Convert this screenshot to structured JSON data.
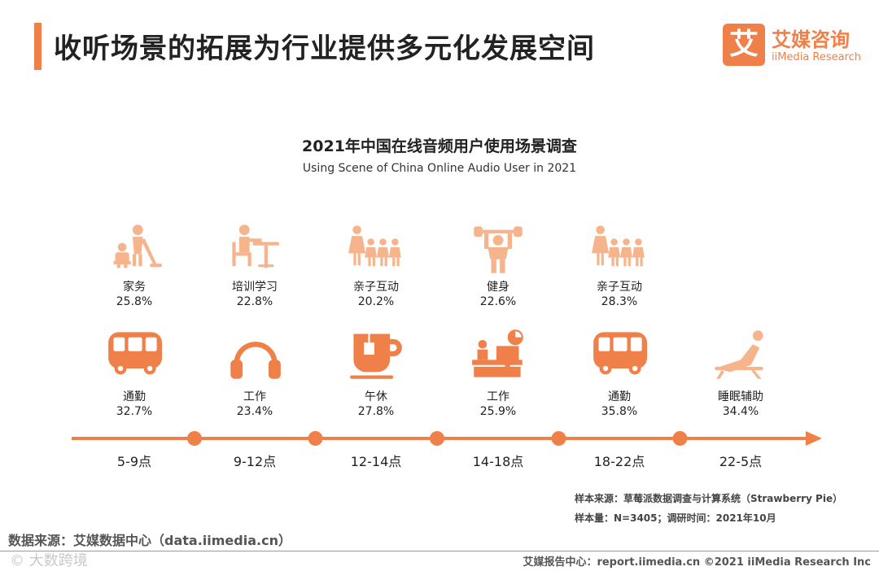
{
  "page": {
    "title": "收听场景的拓展为行业提供多元化发展空间",
    "accent_color": "#f0804a",
    "logo": {
      "mark": "艾",
      "name_cn": "艾媒咨询",
      "name_en": "iiMedia Research"
    }
  },
  "chart_data": {
    "type": "table",
    "title": "2021年中国在线音频用户使用场景调查",
    "subtitle": "Using Scene of China Online Audio User in 2021",
    "unit": "%",
    "time_slots": [
      "5-9点",
      "9-12点",
      "12-14点",
      "14-18点",
      "18-22点",
      "22-5点"
    ],
    "upper_row": [
      {
        "slot": "5-9点",
        "label": "家务",
        "value": 25.8,
        "display": "25.8%",
        "icon": "housework-icon"
      },
      {
        "slot": "9-12点",
        "label": "培训学习",
        "value": 22.8,
        "display": "22.8%",
        "icon": "study-icon"
      },
      {
        "slot": "12-14点",
        "label": "亲子互动",
        "value": 20.2,
        "display": "20.2%",
        "icon": "family-icon"
      },
      {
        "slot": "14-18点",
        "label": "健身",
        "value": 22.6,
        "display": "22.6%",
        "icon": "fitness-icon"
      },
      {
        "slot": "18-22点",
        "label": "亲子互动",
        "value": 28.3,
        "display": "28.3%",
        "icon": "family-icon"
      }
    ],
    "lower_row": [
      {
        "slot": "5-9点",
        "label": "通勤",
        "value": 32.7,
        "display": "32.7%",
        "icon": "bus-icon"
      },
      {
        "slot": "9-12点",
        "label": "工作",
        "value": 23.4,
        "display": "23.4%",
        "icon": "headphones-icon"
      },
      {
        "slot": "12-14点",
        "label": "午休",
        "value": 27.8,
        "display": "27.8%",
        "icon": "coffee-cup-icon"
      },
      {
        "slot": "14-18点",
        "label": "工作",
        "value": 25.9,
        "display": "25.9%",
        "icon": "desk-work-icon"
      },
      {
        "slot": "18-22点",
        "label": "通勤",
        "value": 35.8,
        "display": "35.8%",
        "icon": "bus-icon"
      },
      {
        "slot": "22-5点",
        "label": "睡眠辅助",
        "value": 34.4,
        "display": "34.4%",
        "icon": "sleep-icon"
      }
    ]
  },
  "notes": {
    "sample_source": "样本来源：草莓派数据调查与计算系统（Strawberry Pie）",
    "sample_size": "样本量：N=3405；调研时间：2021年10月"
  },
  "source": "数据来源：艾媒数据中心（data.iimedia.cn）",
  "watermark": "© 大数跨境",
  "footer": "艾媒报告中心：report.iimedia.cn   ©2021  iiMedia Research  Inc"
}
